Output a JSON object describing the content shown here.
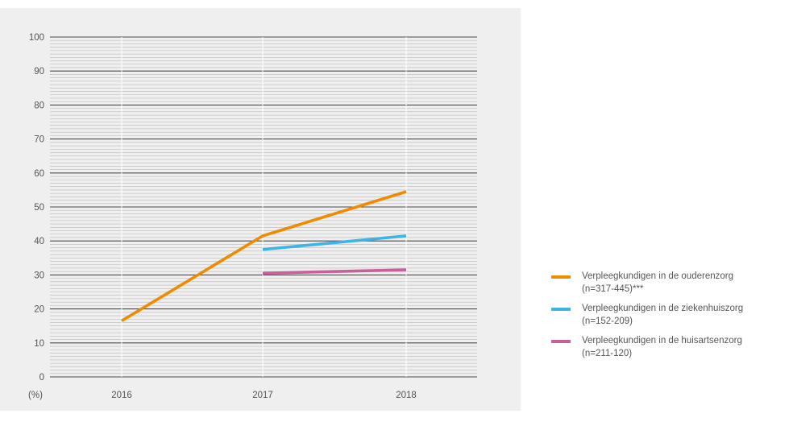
{
  "chart_data": {
    "type": "line",
    "x": [
      "2016",
      "2017",
      "2018"
    ],
    "ylim": [
      0,
      100
    ],
    "yticks": [
      0,
      10,
      20,
      30,
      40,
      50,
      60,
      70,
      80,
      90,
      100
    ],
    "y_unit_label": "(%)",
    "grid": true,
    "legend_position": "right",
    "series": [
      {
        "name": "Verpleegkundigen in de ouderenzorg",
        "n": "(n=317-445)***",
        "color": "#f08a00",
        "values": [
          16.5,
          41.5,
          54.5
        ]
      },
      {
        "name": "Verpleegkundigen in de ziekenhuiszorg",
        "n": "(n=152-209)",
        "color": "#3cb4e5",
        "values": [
          null,
          37.5,
          41.5
        ]
      },
      {
        "name": "Verpleegkundigen in de huisartsenzorg",
        "n": "(n=211-120)",
        "color": "#c8609c",
        "values": [
          null,
          30.5,
          31.5
        ]
      }
    ]
  }
}
